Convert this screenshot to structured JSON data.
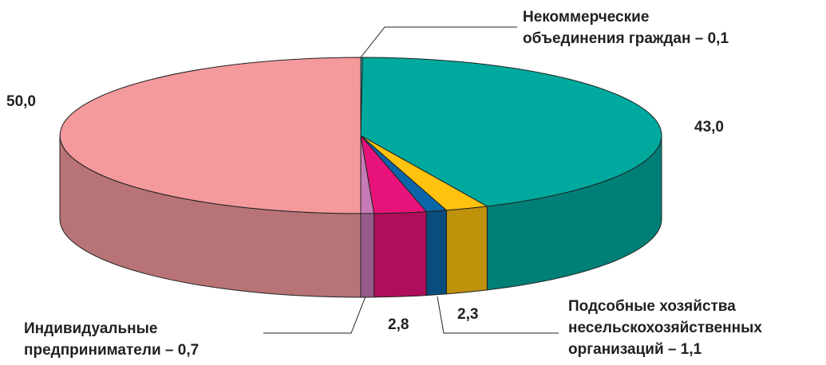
{
  "chart_data": {
    "type": "pie3d",
    "values": [
      0.1,
      43.0,
      2.3,
      1.1,
      2.8,
      0.7,
      50.0
    ],
    "value_labels": [
      [
        "Некоммерческие",
        "объединения граждан – 0,1"
      ],
      "43,0",
      "2,3",
      [
        "Подсобные хозяйства",
        "несельскохозяйственных",
        "организаций – 1,1"
      ],
      "2,8",
      [
        "Индивидуальные",
        "предприниматели – 0,7"
      ],
      "50,0"
    ],
    "colors": [
      "#2fb5a8",
      "#00a99d",
      "#ffc20e",
      "#0a66a8",
      "#e8137a",
      "#c77ab8",
      "#f4999c"
    ]
  }
}
